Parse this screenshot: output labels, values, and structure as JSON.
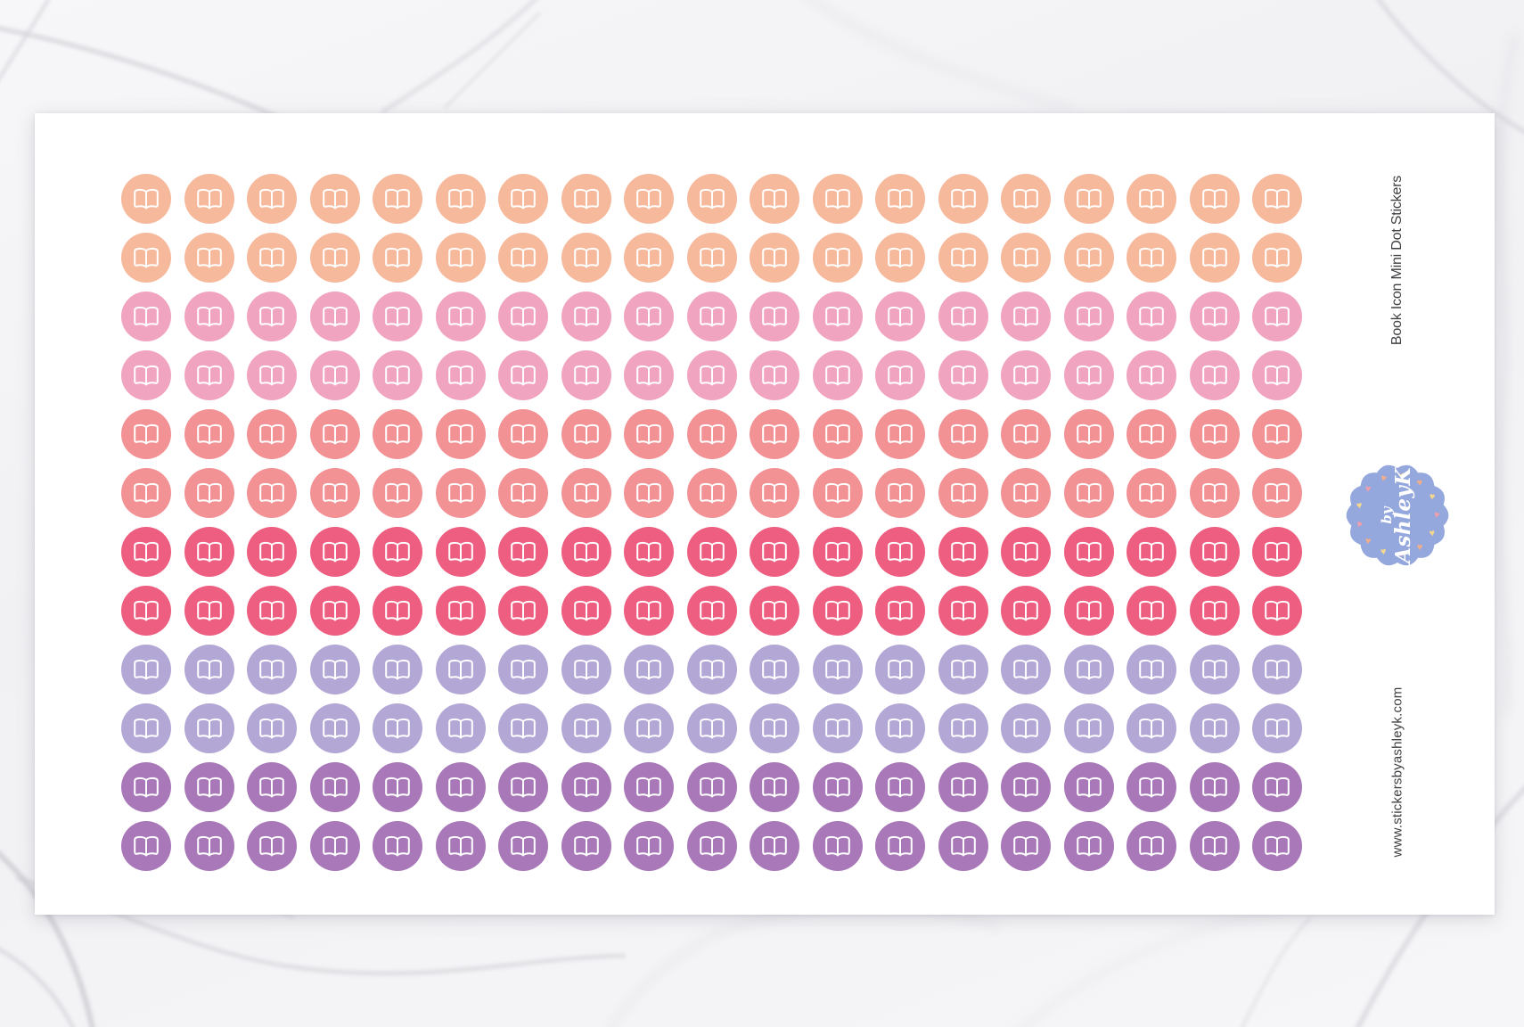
{
  "sheet": {
    "title": "Book Icon Mini Dot Stickers",
    "website": "www.stickersbyashleyk.com",
    "text_color": "#3f3e42",
    "badge": {
      "line1": "by",
      "line2": "AshleyK",
      "bg_color": "#95a8dd",
      "text_color": "#ffffff",
      "heart_colors": [
        "#f5d88c",
        "#f2ae8b",
        "#f5d88c",
        "#ef9fa9",
        "#f5d88c",
        "#f2ae8b",
        "#ef9fa9",
        "#f5d88c",
        "#f2ae8b",
        "#ef9fa9",
        "#f5d88c",
        "#ef9fa9",
        "#f2ae8b"
      ]
    },
    "grid": {
      "columns": 19,
      "icon": "open-book-icon",
      "icon_color": "#ffffff",
      "rows": [
        {
          "color_name": "peach",
          "hex": "#f6b99c"
        },
        {
          "color_name": "peach",
          "hex": "#f6b99c"
        },
        {
          "color_name": "pink",
          "hex": "#f1a4c0"
        },
        {
          "color_name": "pink",
          "hex": "#f1a4c0"
        },
        {
          "color_name": "salmon",
          "hex": "#f29295"
        },
        {
          "color_name": "salmon",
          "hex": "#f29295"
        },
        {
          "color_name": "raspberry",
          "hex": "#ee5e80"
        },
        {
          "color_name": "raspberry",
          "hex": "#ee5e80"
        },
        {
          "color_name": "lavender",
          "hex": "#b3a7d6"
        },
        {
          "color_name": "lavender",
          "hex": "#b3a7d6"
        },
        {
          "color_name": "purple",
          "hex": "#a878b9"
        },
        {
          "color_name": "purple",
          "hex": "#a878b9"
        }
      ]
    }
  }
}
